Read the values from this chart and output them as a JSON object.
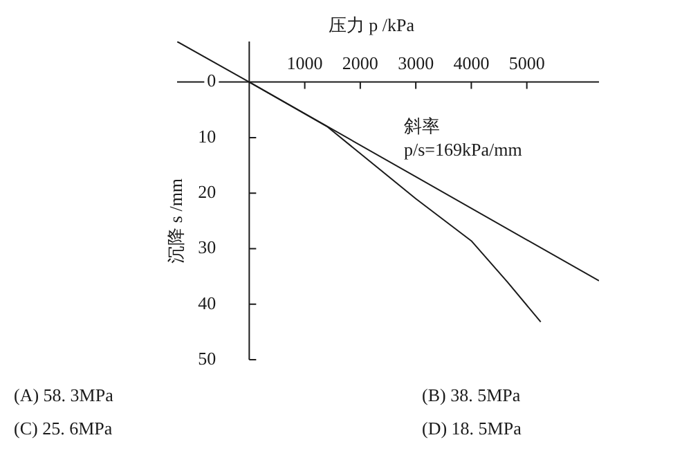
{
  "chart_data": {
    "type": "line",
    "xlabel": "压力 p /kPa",
    "ylabel": "沉降 s /mm",
    "xlim": [
      -1300,
      6300
    ],
    "ylim": [
      50,
      -7.3
    ],
    "xticks": [
      1000,
      2000,
      3000,
      4000,
      5000
    ],
    "yticks": [
      0,
      10,
      20,
      30,
      40,
      50
    ],
    "grid": false,
    "legend": false,
    "marker": "none",
    "line_style": "solid",
    "series": [
      {
        "color": "#1a1a1a",
        "x": [
          -1300,
          0,
          6300
        ],
        "values": [
          -7.3,
          0,
          35.8
        ]
      },
      {
        "color": "#1a1a1a",
        "x": [
          0,
          1400,
          3000,
          4000,
          4650,
          5250
        ],
        "values": [
          0,
          8,
          21,
          28.6,
          36,
          43.2
        ]
      }
    ],
    "annotations": [
      "斜率",
      "p/s=169kPa/mm",
      "(A) 58. 3MPa",
      "(B) 38. 5MPa",
      "(C) 25. 6MPa",
      "(D) 18. 5MPa"
    ]
  }
}
